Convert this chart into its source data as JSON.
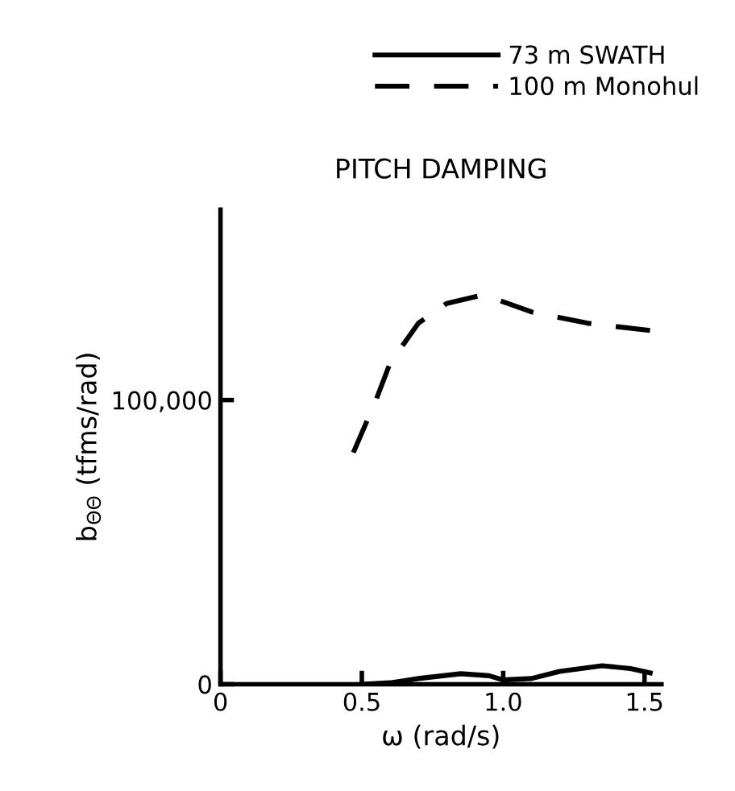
{
  "chart_data": {
    "type": "line",
    "title": "PITCH DAMPING",
    "xlabel": "ω (rad/s)",
    "ylabel": "b$_{ΘΘ}$ (tfms/rad)",
    "xlim": [
      0,
      1.56
    ],
    "xticks": [
      0,
      0.5,
      {
        "value": 1.0,
        "label": "1.0"
      },
      1.5
    ],
    "ylim": [
      0,
      167000
    ],
    "yticks": [
      0,
      {
        "value": 100000,
        "label": "100,000"
      }
    ],
    "grid": false,
    "legend": "top right",
    "marker": "none",
    "series": [
      {
        "name": "73 m SWATH",
        "color": "#000000",
        "line_style": "solid",
        "x": [
          0.5,
          0.6,
          0.7,
          0.85,
          0.95,
          1.0,
          1.1,
          1.2,
          1.35,
          1.45,
          1.52
        ],
        "values": [
          0,
          500,
          2000,
          3700,
          3000,
          1500,
          2000,
          4500,
          6500,
          5500,
          4000
        ]
      },
      {
        "name": "100 m Monohul",
        "color": "#000000",
        "line_style": "dashed",
        "x": [
          0.47,
          0.55,
          0.6,
          0.7,
          0.8,
          0.93,
          1.1,
          1.3,
          1.56
        ],
        "values": [
          81500,
          100000,
          113000,
          127000,
          134000,
          137000,
          131000,
          127000,
          124000
        ]
      }
    ]
  }
}
